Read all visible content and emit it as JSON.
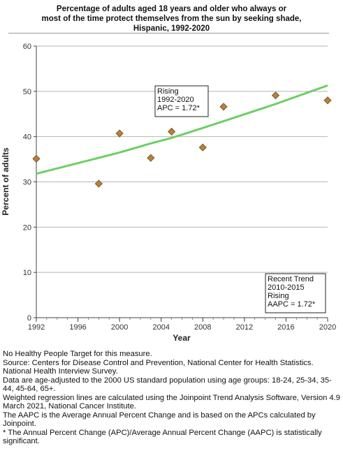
{
  "chart_data": {
    "type": "scatter",
    "title": "Percentage of adults aged 18 years and older who always or most of the time protect themselves from the sun by seeking shade, Hispanic,  1992-2020",
    "title_lines": [
      "Percentage of adults aged 18 years and older who always or",
      "most of the time protect themselves from the sun by seeking shade,",
      "Hispanic,  1992-2020"
    ],
    "xlabel": "Year",
    "ylabel": "Percent of adults",
    "xlim": [
      1992,
      2020
    ],
    "ylim": [
      0,
      60
    ],
    "x_ticks": [
      1992,
      1996,
      2000,
      2004,
      2008,
      2012,
      2016,
      2020
    ],
    "y_ticks": [
      0,
      10,
      20,
      30,
      40,
      50,
      60
    ],
    "grid": "horizontal",
    "series": [
      {
        "kind": "points",
        "x": [
          1992,
          1998,
          2000,
          2003,
          2005,
          2008,
          2010,
          2015,
          2020
        ],
        "y": [
          35.1,
          29.6,
          40.7,
          35.3,
          41.1,
          37.6,
          46.6,
          49.1,
          48.0
        ],
        "color": "#b9803a"
      },
      {
        "kind": "trend",
        "x": [
          1992,
          1998,
          2000,
          2003,
          2005,
          2008,
          2010,
          2015,
          2020
        ],
        "y": [
          31.8,
          35.3,
          36.5,
          38.5,
          39.7,
          41.9,
          43.4,
          47.2,
          51.3
        ],
        "color": "#6ccf63"
      }
    ],
    "annotations": [
      {
        "lines": [
          "Rising",
          "1992-2020",
          "APC =  1.72*"
        ],
        "position": "upper-middle"
      },
      {
        "lines": [
          "Recent Trend",
          "2010-2015",
          "Rising",
          "AAPC =  1.72*"
        ],
        "position": "bottom-right"
      }
    ]
  },
  "footnotes": [
    "No Healthy People Target for this measure.",
    "Source: Centers for Disease Control and Prevention, National Center for Health Statistics. National Health Interview Survey.",
    "Data are age-adjusted to the 2000 US standard population using age groups: 18-24, 25-34, 35-44, 45-64, 65+.",
    "Weighted regression lines are calculated using the Joinpoint Trend Analysis Software, Version 4.9 March 2021, National Cancer Institute.",
    "The AAPC is the Average Annual Percent Change and is based on the APCs calculated by Joinpoint.",
    "* The Annual Percent Change (APC)/Average Annual Percent Change (AAPC) is statistically significant."
  ]
}
